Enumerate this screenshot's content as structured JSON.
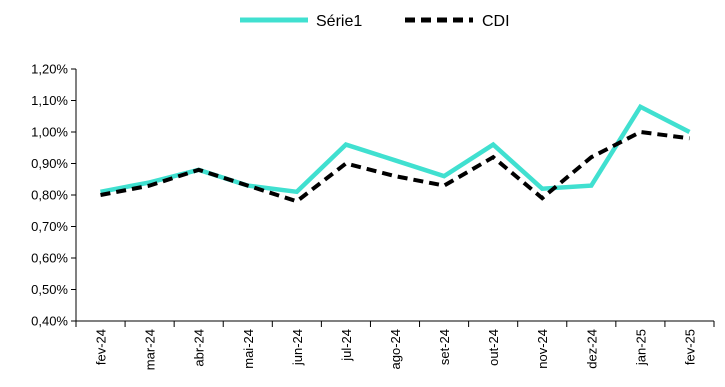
{
  "chart_data": {
    "type": "line",
    "categories": [
      "fev-24",
      "mar-24",
      "abr-24",
      "mai-24",
      "jun-24",
      "jul-24",
      "ago-24",
      "set-24",
      "out-24",
      "nov-24",
      "dez-24",
      "jan-25",
      "fev-25"
    ],
    "series": [
      {
        "name": "Série1",
        "values": [
          0.81,
          0.84,
          0.88,
          0.83,
          0.81,
          0.96,
          0.91,
          0.86,
          0.96,
          0.82,
          0.83,
          1.08,
          1.0
        ],
        "color": "#40e0d0",
        "style": "solid"
      },
      {
        "name": "CDI",
        "values": [
          0.8,
          0.83,
          0.88,
          0.83,
          0.78,
          0.9,
          0.86,
          0.83,
          0.92,
          0.79,
          0.92,
          1.0,
          0.98
        ],
        "color": "#000000",
        "style": "dashed"
      }
    ],
    "yticks": [
      "0,40%",
      "0,50%",
      "0,60%",
      "0,70%",
      "0,80%",
      "0,90%",
      "1,00%",
      "1,10%",
      "1,20%"
    ],
    "ylim": [
      0.4,
      1.2
    ],
    "title": "",
    "xlabel": "",
    "ylabel": "",
    "grid": false,
    "legend_position": "top-center"
  }
}
